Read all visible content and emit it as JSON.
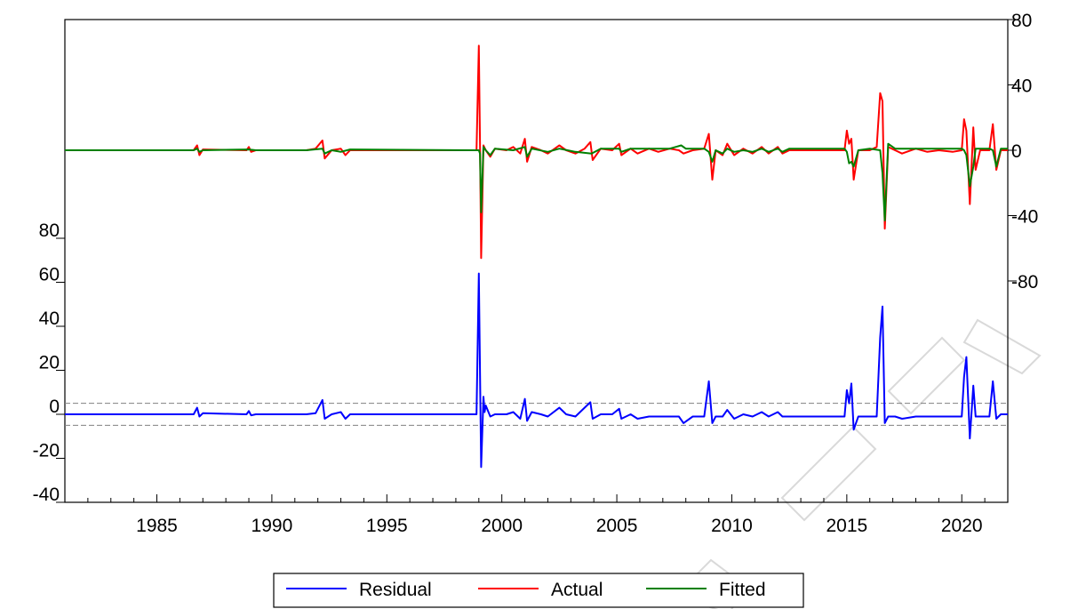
{
  "chart_data": {
    "type": "line",
    "x_ticks": [
      "1985",
      "1990",
      "1995",
      "2000",
      "2005",
      "2010",
      "2015",
      "2020"
    ],
    "x_range": [
      1981.0,
      2022.0
    ],
    "right_axis": {
      "ticks": [
        "80",
        "40",
        "0",
        "-40",
        "-80"
      ],
      "ylim": [
        -80,
        80
      ]
    },
    "left_axis": {
      "ticks": [
        "80",
        "60",
        "40",
        "20",
        "0",
        "-20",
        "-40"
      ],
      "ylim": [
        -40,
        80
      ]
    },
    "residual_band": [
      5,
      -5
    ],
    "colors": {
      "Residual": "#0000ff",
      "Actual": "#ff0000",
      "Fitted": "#008000",
      "band": "#808080"
    },
    "legend": {
      "placement": "bottom-center",
      "entries": [
        "Residual",
        "Actual",
        "Fitted"
      ]
    },
    "grid": false,
    "series": [
      {
        "name": "Actual",
        "axis": "right",
        "points": [
          [
            1981.0,
            0
          ],
          [
            1986.6,
            0
          ],
          [
            1986.75,
            3
          ],
          [
            1986.85,
            -3
          ],
          [
            1987.0,
            0.5
          ],
          [
            1988.9,
            0
          ],
          [
            1989.0,
            2
          ],
          [
            1989.1,
            -1
          ],
          [
            1989.3,
            0
          ],
          [
            1991.5,
            0
          ],
          [
            1991.9,
            1
          ],
          [
            1992.2,
            6
          ],
          [
            1992.3,
            -5
          ],
          [
            1992.6,
            0
          ],
          [
            1993.0,
            1
          ],
          [
            1993.2,
            -3
          ],
          [
            1993.4,
            0
          ],
          [
            1998.9,
            0
          ],
          [
            1999.0,
            64
          ],
          [
            1999.05,
            5
          ],
          [
            1999.1,
            -66
          ],
          [
            1999.2,
            3
          ],
          [
            1999.3,
            0
          ],
          [
            1999.5,
            -4
          ],
          [
            1999.7,
            1
          ],
          [
            2000.2,
            0
          ],
          [
            2000.5,
            2
          ],
          [
            2000.8,
            -2
          ],
          [
            2001.0,
            7
          ],
          [
            2001.1,
            -7
          ],
          [
            2001.3,
            2
          ],
          [
            2001.7,
            0
          ],
          [
            2002.0,
            -2
          ],
          [
            2002.3,
            1
          ],
          [
            2002.5,
            3
          ],
          [
            2002.8,
            0
          ],
          [
            2003.2,
            -2
          ],
          [
            2003.6,
            1
          ],
          [
            2003.85,
            5
          ],
          [
            2003.95,
            -6
          ],
          [
            2004.3,
            1
          ],
          [
            2004.8,
            0
          ],
          [
            2005.1,
            4
          ],
          [
            2005.2,
            -3
          ],
          [
            2005.6,
            1
          ],
          [
            2005.9,
            -2
          ],
          [
            2006.4,
            1
          ],
          [
            2006.8,
            -1
          ],
          [
            2007.3,
            1
          ],
          [
            2007.7,
            0
          ],
          [
            2007.9,
            -2
          ],
          [
            2008.3,
            0
          ],
          [
            2008.8,
            1
          ],
          [
            2009.0,
            10
          ],
          [
            2009.15,
            -18
          ],
          [
            2009.3,
            0
          ],
          [
            2009.6,
            -3
          ],
          [
            2009.8,
            4
          ],
          [
            2010.1,
            -3
          ],
          [
            2010.5,
            1
          ],
          [
            2010.9,
            -2
          ],
          [
            2011.3,
            2
          ],
          [
            2011.6,
            -2
          ],
          [
            2012.0,
            2
          ],
          [
            2012.2,
            -2
          ],
          [
            2012.5,
            0
          ],
          [
            2014.9,
            0
          ],
          [
            2015.0,
            12
          ],
          [
            2015.1,
            4
          ],
          [
            2015.2,
            7
          ],
          [
            2015.3,
            -18
          ],
          [
            2015.5,
            0
          ],
          [
            2016.0,
            0
          ],
          [
            2016.3,
            2
          ],
          [
            2016.45,
            35
          ],
          [
            2016.55,
            30
          ],
          [
            2016.65,
            -48
          ],
          [
            2016.8,
            2
          ],
          [
            2017.1,
            0
          ],
          [
            2017.4,
            -2
          ],
          [
            2018.0,
            1
          ],
          [
            2018.5,
            -1
          ],
          [
            2019.0,
            0
          ],
          [
            2019.6,
            -1
          ],
          [
            2020.0,
            0
          ],
          [
            2020.1,
            19
          ],
          [
            2020.2,
            12
          ],
          [
            2020.35,
            -33
          ],
          [
            2020.5,
            14
          ],
          [
            2020.6,
            -12
          ],
          [
            2020.8,
            0
          ],
          [
            2021.2,
            0
          ],
          [
            2021.35,
            16
          ],
          [
            2021.5,
            -12
          ],
          [
            2021.7,
            0
          ],
          [
            2022.0,
            0
          ]
        ]
      },
      {
        "name": "Fitted",
        "axis": "right",
        "points": [
          [
            1981.0,
            0
          ],
          [
            1986.6,
            0
          ],
          [
            1986.75,
            1
          ],
          [
            1986.85,
            -1
          ],
          [
            1987.0,
            0
          ],
          [
            1989.0,
            0.5
          ],
          [
            1989.3,
            0
          ],
          [
            1991.5,
            0
          ],
          [
            1992.2,
            1
          ],
          [
            1992.3,
            -2
          ],
          [
            1992.6,
            0
          ],
          [
            1993.0,
            -1
          ],
          [
            1993.4,
            0.5
          ],
          [
            1998.9,
            0
          ],
          [
            1999.0,
            0
          ],
          [
            1999.05,
            -2
          ],
          [
            1999.1,
            -38
          ],
          [
            1999.2,
            2
          ],
          [
            1999.3,
            0
          ],
          [
            1999.5,
            -3
          ],
          [
            1999.7,
            1
          ],
          [
            2000.5,
            0
          ],
          [
            2001.0,
            2
          ],
          [
            2001.1,
            -4
          ],
          [
            2001.3,
            1
          ],
          [
            2002.0,
            -1
          ],
          [
            2002.5,
            1
          ],
          [
            2003.2,
            -1
          ],
          [
            2003.9,
            -2
          ],
          [
            2004.3,
            1
          ],
          [
            2005.1,
            1
          ],
          [
            2005.2,
            -1
          ],
          [
            2005.6,
            1
          ],
          [
            2006.4,
            1
          ],
          [
            2007.3,
            1
          ],
          [
            2007.8,
            3
          ],
          [
            2008.0,
            1
          ],
          [
            2008.8,
            1
          ],
          [
            2009.0,
            -1
          ],
          [
            2009.15,
            -7
          ],
          [
            2009.3,
            0
          ],
          [
            2009.6,
            -2
          ],
          [
            2009.8,
            1
          ],
          [
            2010.1,
            -1
          ],
          [
            2010.5,
            0
          ],
          [
            2010.9,
            -1
          ],
          [
            2011.3,
            1
          ],
          [
            2011.6,
            -1
          ],
          [
            2012.0,
            1
          ],
          [
            2012.2,
            -1
          ],
          [
            2012.5,
            1
          ],
          [
            2014.9,
            1
          ],
          [
            2015.0,
            -1
          ],
          [
            2015.1,
            -8
          ],
          [
            2015.2,
            -7
          ],
          [
            2015.3,
            -10
          ],
          [
            2015.5,
            0
          ],
          [
            2016.0,
            1
          ],
          [
            2016.45,
            0
          ],
          [
            2016.55,
            -14
          ],
          [
            2016.65,
            -43
          ],
          [
            2016.8,
            4
          ],
          [
            2017.1,
            1
          ],
          [
            2018.0,
            1
          ],
          [
            2019.0,
            1
          ],
          [
            2020.0,
            1
          ],
          [
            2020.1,
            0
          ],
          [
            2020.2,
            -3
          ],
          [
            2020.35,
            -22
          ],
          [
            2020.5,
            -10
          ],
          [
            2020.6,
            1
          ],
          [
            2020.8,
            1
          ],
          [
            2021.2,
            1
          ],
          [
            2021.35,
            0
          ],
          [
            2021.5,
            -10
          ],
          [
            2021.7,
            1
          ],
          [
            2022.0,
            1
          ]
        ]
      },
      {
        "name": "Residual",
        "axis": "left",
        "points": [
          [
            1981.0,
            0
          ],
          [
            1986.6,
            0
          ],
          [
            1986.75,
            3
          ],
          [
            1986.85,
            -1
          ],
          [
            1987.0,
            0.5
          ],
          [
            1988.9,
            0
          ],
          [
            1989.0,
            1.5
          ],
          [
            1989.1,
            -0.5
          ],
          [
            1989.3,
            0
          ],
          [
            1991.5,
            0
          ],
          [
            1991.9,
            0.5
          ],
          [
            1992.2,
            6.5
          ],
          [
            1992.3,
            -2
          ],
          [
            1992.6,
            0
          ],
          [
            1993.0,
            1
          ],
          [
            1993.2,
            -2
          ],
          [
            1993.4,
            0
          ],
          [
            1998.9,
            0
          ],
          [
            1999.0,
            64
          ],
          [
            1999.05,
            20
          ],
          [
            1999.1,
            -24
          ],
          [
            1999.2,
            8
          ],
          [
            1999.25,
            1
          ],
          [
            1999.3,
            4
          ],
          [
            1999.5,
            -1
          ],
          [
            1999.7,
            0
          ],
          [
            2000.2,
            0
          ],
          [
            2000.5,
            1
          ],
          [
            2000.8,
            -2
          ],
          [
            2001.0,
            7
          ],
          [
            2001.1,
            -3
          ],
          [
            2001.3,
            1
          ],
          [
            2001.7,
            0
          ],
          [
            2002.0,
            -1
          ],
          [
            2002.5,
            3
          ],
          [
            2002.8,
            0
          ],
          [
            2003.2,
            -1
          ],
          [
            2003.85,
            5.5
          ],
          [
            2003.95,
            -2
          ],
          [
            2004.3,
            0
          ],
          [
            2004.8,
            0
          ],
          [
            2005.1,
            2.5
          ],
          [
            2005.2,
            -2
          ],
          [
            2005.6,
            0
          ],
          [
            2005.9,
            -2
          ],
          [
            2006.4,
            -1
          ],
          [
            2006.8,
            -1
          ],
          [
            2007.3,
            -1
          ],
          [
            2007.7,
            -1
          ],
          [
            2007.9,
            -4
          ],
          [
            2008.3,
            -1
          ],
          [
            2008.8,
            -1
          ],
          [
            2009.0,
            15
          ],
          [
            2009.15,
            -4
          ],
          [
            2009.3,
            -1
          ],
          [
            2009.6,
            -1
          ],
          [
            2009.8,
            2
          ],
          [
            2010.1,
            -2
          ],
          [
            2010.5,
            0
          ],
          [
            2010.9,
            -1
          ],
          [
            2011.3,
            1
          ],
          [
            2011.6,
            -1
          ],
          [
            2012.0,
            1
          ],
          [
            2012.2,
            -1
          ],
          [
            2012.5,
            -1
          ],
          [
            2014.9,
            -1
          ],
          [
            2015.0,
            11
          ],
          [
            2015.1,
            5
          ],
          [
            2015.2,
            14
          ],
          [
            2015.3,
            -7
          ],
          [
            2015.5,
            -1
          ],
          [
            2016.0,
            -1
          ],
          [
            2016.3,
            -1
          ],
          [
            2016.45,
            35
          ],
          [
            2016.55,
            49
          ],
          [
            2016.65,
            -4
          ],
          [
            2016.8,
            -1
          ],
          [
            2017.1,
            -1
          ],
          [
            2017.4,
            -2
          ],
          [
            2018.0,
            -1
          ],
          [
            2018.5,
            -1
          ],
          [
            2019.0,
            -1
          ],
          [
            2019.6,
            -1
          ],
          [
            2020.0,
            -1
          ],
          [
            2020.1,
            17
          ],
          [
            2020.2,
            26
          ],
          [
            2020.35,
            -11
          ],
          [
            2020.5,
            13
          ],
          [
            2020.6,
            -1
          ],
          [
            2020.8,
            -1
          ],
          [
            2021.2,
            -1
          ],
          [
            2021.35,
            15
          ],
          [
            2021.5,
            -2
          ],
          [
            2021.7,
            0
          ],
          [
            2022.0,
            0
          ]
        ]
      }
    ]
  }
}
